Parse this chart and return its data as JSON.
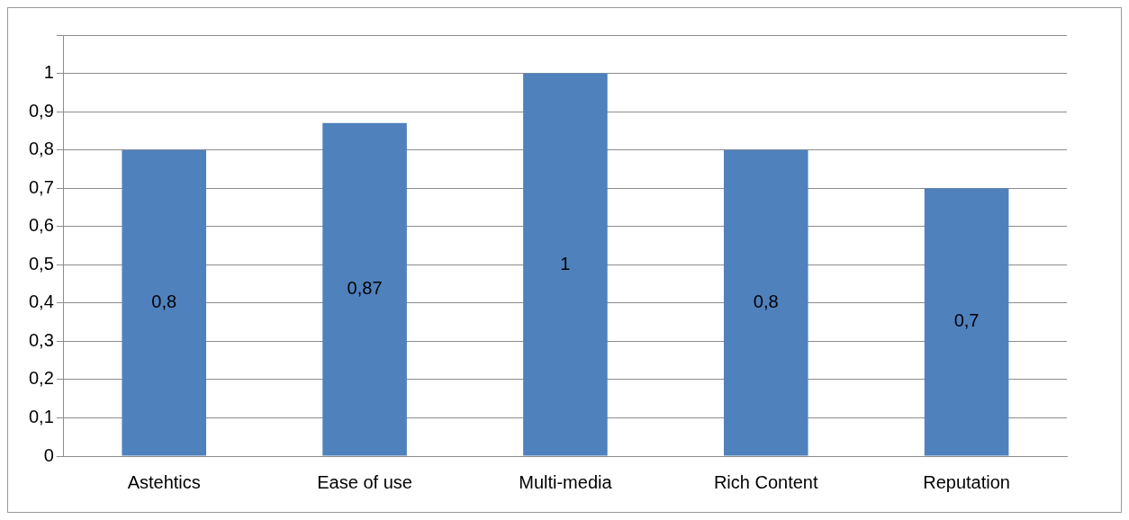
{
  "chart_data": {
    "type": "bar",
    "categories": [
      "Astehtics",
      "Ease of use",
      "Multi-media",
      "Rich Content",
      "Reputation"
    ],
    "values": [
      0.8,
      0.87,
      1,
      0.8,
      0.7
    ],
    "value_labels": [
      "0,8",
      "0,87",
      "1",
      "0,8",
      "0,7"
    ],
    "color": "#4f81bd",
    "ylim": [
      0,
      1.1
    ],
    "yticks": [
      0,
      {
        "value": 0.1,
        "label": "0,1"
      },
      {
        "value": 0.2,
        "label": "0,2"
      },
      {
        "value": 0.3,
        "label": "0,3"
      },
      {
        "value": 0.4,
        "label": "0,4"
      },
      {
        "value": 0.5,
        "label": "0,5"
      },
      {
        "value": 0.6,
        "label": "0,6"
      },
      {
        "value": 0.7,
        "label": "0,7"
      },
      {
        "value": 0.8,
        "label": "0,8"
      },
      {
        "value": 0.9,
        "label": "0,9"
      },
      1,
      {
        "value": 1.1,
        "label": null
      }
    ],
    "grid": "y"
  }
}
